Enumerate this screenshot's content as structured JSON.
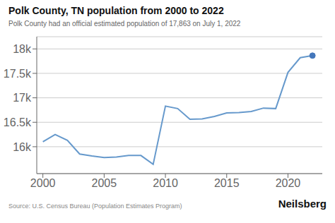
{
  "chart_data": {
    "type": "line",
    "title": "Polk County, TN population from 2000 to 2022",
    "subtitle": "Polk County had an official estimated population of 17,863 on July 1, 2022",
    "annotations": [
      "Source: U.S. Census Bureau (Population Estimates Program)",
      "Neilsberg"
    ],
    "x": [
      2000,
      2001,
      2002,
      2003,
      2004,
      2005,
      2006,
      2007,
      2008,
      2009,
      2010,
      2011,
      2012,
      2013,
      2014,
      2015,
      2016,
      2017,
      2018,
      2019,
      2020,
      2021,
      2022
    ],
    "series": [
      {
        "type": "line",
        "color": "#6699cc",
        "values": [
          16100,
          16250,
          16130,
          15850,
          15810,
          15780,
          15790,
          15820,
          15820,
          15640,
          16830,
          16780,
          16560,
          16570,
          16620,
          16690,
          16700,
          16720,
          16790,
          16780,
          17520,
          17820,
          17863
        ]
      },
      {
        "type": "scatter",
        "color": "#4477bb",
        "values": [
          null,
          null,
          null,
          null,
          null,
          null,
          null,
          null,
          null,
          null,
          null,
          null,
          null,
          null,
          null,
          null,
          null,
          null,
          null,
          null,
          null,
          null,
          17863
        ]
      }
    ],
    "xlim": [
      1999.5,
      2022.8
    ],
    "xticks": [
      2000,
      2005,
      2010,
      2015,
      2020
    ],
    "ylim": [
      15450,
      18250
    ],
    "yticks": [
      {
        "value": 16000,
        "label": "16k"
      },
      {
        "value": 16500,
        "label": "16.5k"
      },
      {
        "value": 17000,
        "label": "17k"
      },
      {
        "value": 17500,
        "label": "17.5k"
      },
      {
        "value": 18000,
        "label": "18k"
      }
    ],
    "grid": "y"
  }
}
